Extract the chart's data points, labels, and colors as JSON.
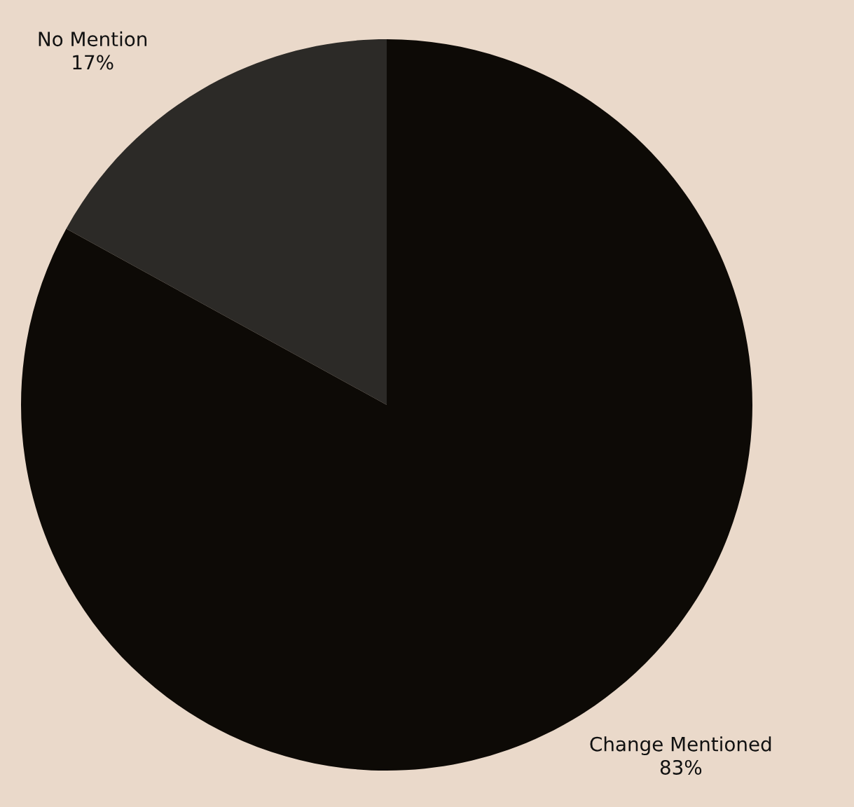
{
  "chart_data": {
    "type": "pie",
    "categories": [
      "No Mention",
      "Change Mentioned"
    ],
    "values": [
      17,
      83
    ],
    "colors": [
      "#2c2a27",
      "#0d0a06"
    ],
    "value_labels": [
      "17%",
      "83%"
    ]
  }
}
